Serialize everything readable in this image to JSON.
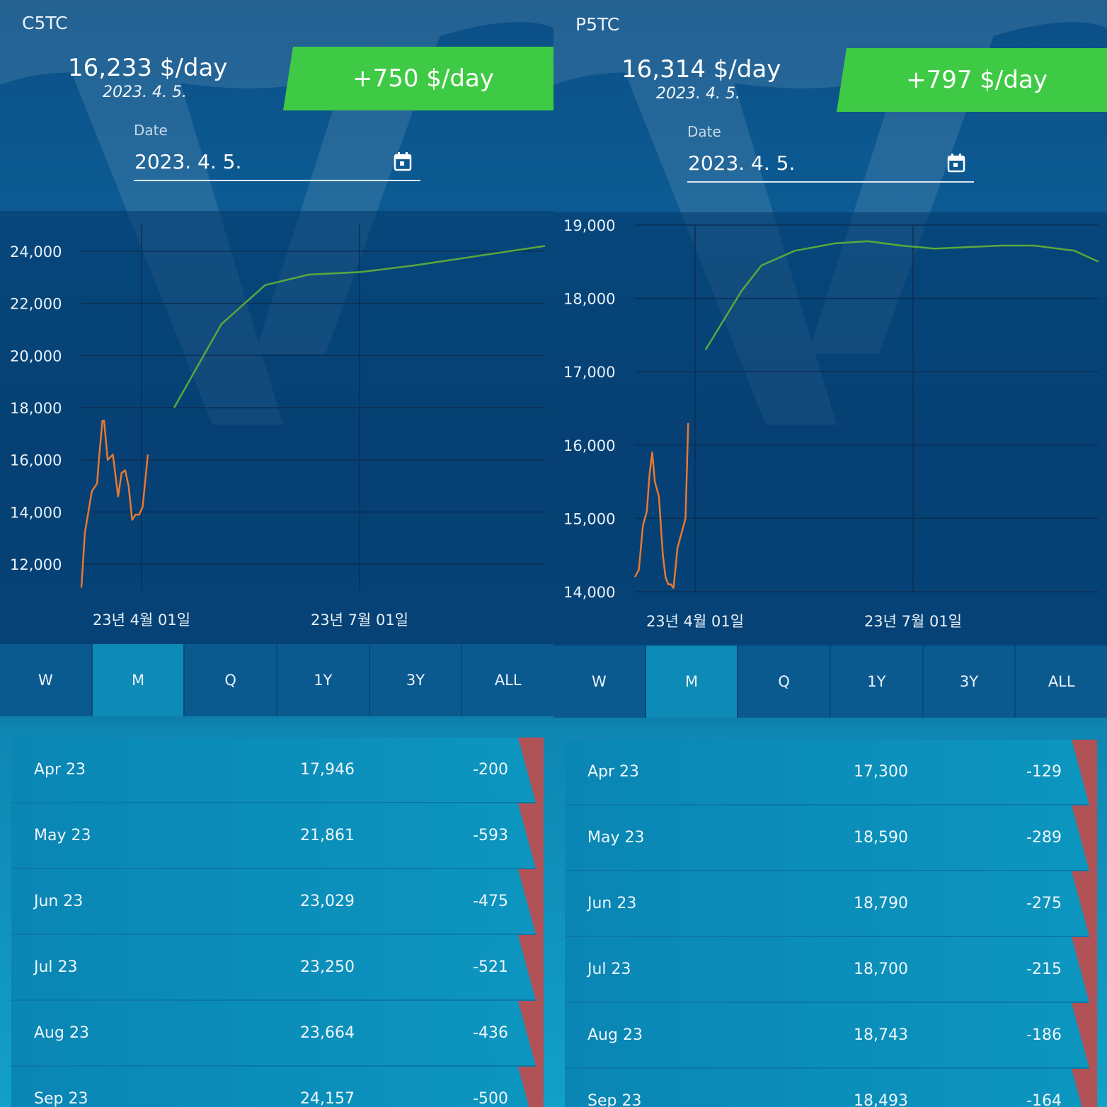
{
  "panels": [
    {
      "title": "C5TC",
      "price": "16,233 $/day",
      "price_date": "2023. 4. 5.",
      "change": "+750 $/day",
      "date_label": "Date",
      "date_value": "2023. 4. 5.",
      "tabs": [
        "W",
        "M",
        "Q",
        "1Y",
        "3Y",
        "ALL"
      ],
      "active_tab": "M",
      "rows": [
        {
          "month": "Apr 23",
          "value": "17,946",
          "change": "-200"
        },
        {
          "month": "May 23",
          "value": "21,861",
          "change": "-593"
        },
        {
          "month": "Jun 23",
          "value": "23,029",
          "change": "-475"
        },
        {
          "month": "Jul 23",
          "value": "23,250",
          "change": "-521"
        },
        {
          "month": "Aug 23",
          "value": "23,664",
          "change": "-436"
        },
        {
          "month": "Sep 23",
          "value": "24,157",
          "change": "-500"
        }
      ],
      "chart_data": {
        "type": "line",
        "x_tick_labels": [
          "23년 4월 01일",
          "23년 7월 01일"
        ],
        "y_ticks": [
          12000,
          14000,
          16000,
          18000,
          20000,
          22000,
          24000
        ],
        "ylim": [
          11000,
          25000
        ],
        "grid": true,
        "series": [
          {
            "color": "#e8782f",
            "points": [
              [
                0,
                11100
              ],
              [
                2,
                13200
              ],
              [
                6,
                14800
              ],
              [
                9,
                15100
              ],
              [
                10,
                16000
              ],
              [
                12,
                17500
              ],
              [
                13,
                17500
              ],
              [
                15,
                16000
              ],
              [
                18,
                16200
              ],
              [
                21,
                14600
              ],
              [
                23,
                15500
              ],
              [
                25,
                15600
              ],
              [
                27,
                15000
              ],
              [
                29,
                13700
              ],
              [
                31,
                13900
              ],
              [
                33,
                13900
              ],
              [
                35,
                14200
              ],
              [
                38,
                16200
              ]
            ]
          },
          {
            "color": "#5aa83c",
            "points": [
              [
                53,
                18000
              ],
              [
                80,
                21200
              ],
              [
                105,
                22700
              ],
              [
                130,
                23100
              ],
              [
                160,
                23200
              ],
              [
                190,
                23450
              ],
              [
                225,
                23800
              ],
              [
                265,
                24200
              ]
            ]
          }
        ]
      },
      "x_tick_positions": [
        0,
        1
      ],
      "colors": {
        "badge": "#3fca45",
        "orange": "#e8782f",
        "green": "#5aa83c",
        "flag": "#b15256"
      }
    },
    {
      "title": "P5TC",
      "price": "16,314 $/day",
      "price_date": "2023. 4. 5.",
      "change": "+797 $/day",
      "date_label": "Date",
      "date_value": "2023. 4. 5.",
      "tabs": [
        "W",
        "M",
        "Q",
        "1Y",
        "3Y",
        "ALL"
      ],
      "active_tab": "M",
      "rows": [
        {
          "month": "Apr 23",
          "value": "17,300",
          "change": "-129"
        },
        {
          "month": "May 23",
          "value": "18,590",
          "change": "-289"
        },
        {
          "month": "Jun 23",
          "value": "18,790",
          "change": "-275"
        },
        {
          "month": "Jul 23",
          "value": "18,700",
          "change": "-215"
        },
        {
          "month": "Aug 23",
          "value": "18,743",
          "change": "-186"
        },
        {
          "month": "Sep 23",
          "value": "18,493",
          "change": "-164"
        }
      ],
      "chart_data": {
        "type": "line",
        "x_tick_labels": [
          "23년 4월 01일",
          "23년 7월 01일"
        ],
        "y_ticks": [
          14000,
          15000,
          16000,
          17000,
          18000,
          19000
        ],
        "ylim": [
          14000,
          19000
        ],
        "grid": true,
        "series": [
          {
            "color": "#e8782f",
            "points": [
              [
                0,
                14200
              ],
              [
                3,
                14300
              ],
              [
                6,
                14900
              ],
              [
                9,
                15100
              ],
              [
                11,
                15600
              ],
              [
                13,
                15900
              ],
              [
                15,
                15500
              ],
              [
                18,
                15300
              ],
              [
                21,
                14500
              ],
              [
                23,
                14200
              ],
              [
                25,
                14100
              ],
              [
                27,
                14100
              ],
              [
                29,
                14050
              ],
              [
                32,
                14600
              ],
              [
                35,
                14800
              ],
              [
                38,
                15000
              ],
              [
                40,
                16300
              ]
            ]
          },
          {
            "color": "#5aa83c",
            "points": [
              [
                53,
                17300
              ],
              [
                80,
                18100
              ],
              [
                95,
                18450
              ],
              [
                120,
                18650
              ],
              [
                150,
                18750
              ],
              [
                175,
                18780
              ],
              [
                200,
                18720
              ],
              [
                225,
                18680
              ],
              [
                250,
                18700
              ],
              [
                275,
                18720
              ],
              [
                300,
                18720
              ],
              [
                330,
                18650
              ],
              [
                348,
                18500
              ]
            ]
          }
        ]
      },
      "colors": {
        "badge": "#3fca45",
        "orange": "#e8782f",
        "green": "#5aa83c",
        "flag": "#b15256"
      }
    }
  ]
}
